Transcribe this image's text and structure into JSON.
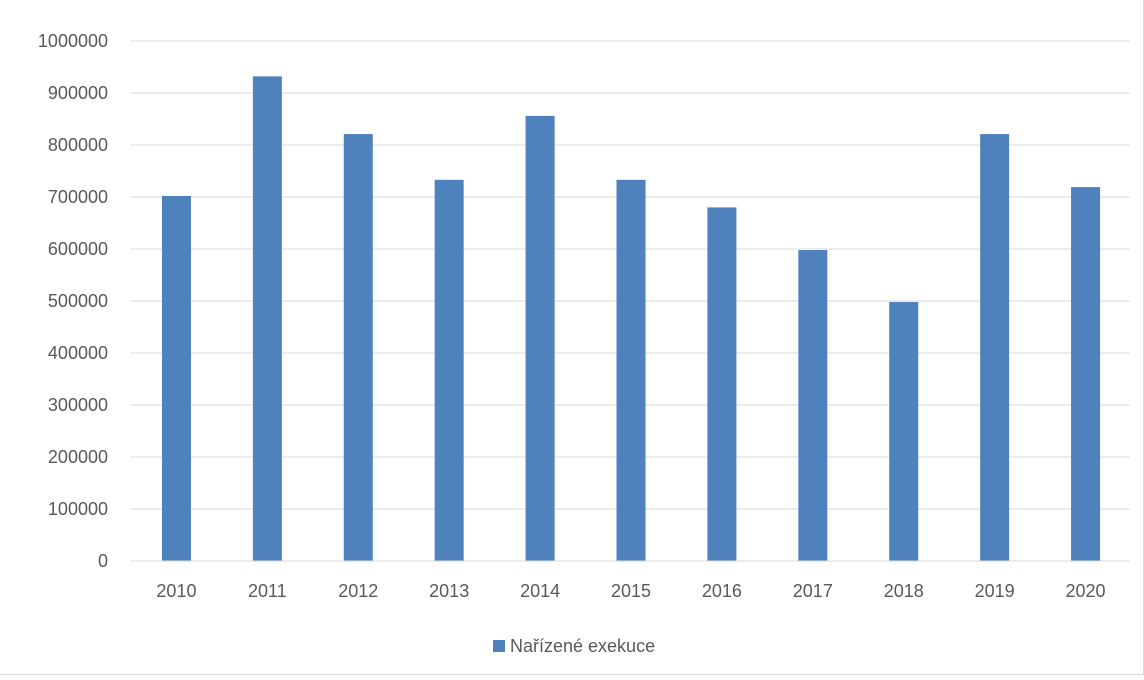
{
  "chart_data": {
    "type": "bar",
    "categories": [
      "2010",
      "2011",
      "2012",
      "2013",
      "2014",
      "2015",
      "2016",
      "2017",
      "2018",
      "2019",
      "2020"
    ],
    "series": [
      {
        "name": "Nařízené exekuce",
        "color": "#4f81bd",
        "values": [
          702000,
          932000,
          821000,
          733000,
          856000,
          733000,
          680000,
          598000,
          498000,
          821000,
          719000
        ]
      }
    ],
    "title": "",
    "xlabel": "",
    "ylabel": "",
    "ylim": [
      0,
      1000000
    ],
    "yticks": [
      "0",
      "100000",
      "200000",
      "300000",
      "400000",
      "500000",
      "600000",
      "700000",
      "800000",
      "900000",
      "1000000"
    ],
    "grid": true,
    "legend_position": "bottom"
  }
}
